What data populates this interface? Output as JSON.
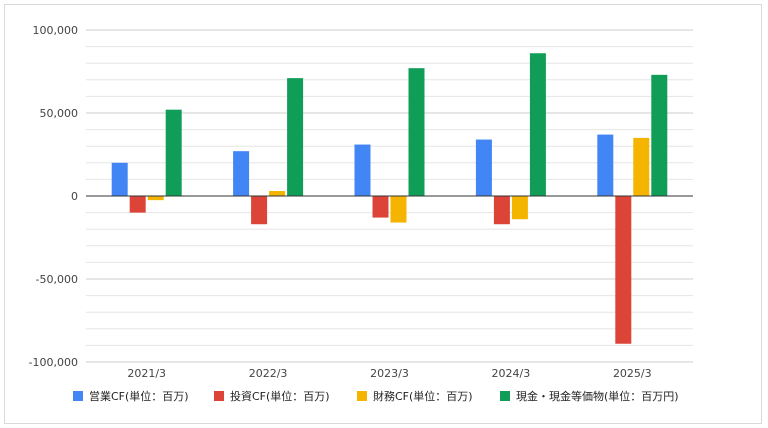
{
  "chart_data": {
    "type": "bar",
    "categories": [
      "2021/3",
      "2022/3",
      "2023/3",
      "2024/3",
      "2025/3"
    ],
    "series": [
      {
        "name": "営業CF(単位：百万)",
        "color": "#4285f4",
        "values": [
          20000,
          27000,
          31000,
          34000,
          37000
        ]
      },
      {
        "name": "投資CF(単位：百万)",
        "color": "#db4437",
        "values": [
          -10000,
          -17000,
          -13000,
          -17000,
          -89000
        ]
      },
      {
        "name": "財務CF(単位：百万)",
        "color": "#f4b400",
        "values": [
          -2500,
          3000,
          -16000,
          -14000,
          35000
        ]
      },
      {
        "name": "現金・現金等価物(単位：百万円)",
        "color": "#0f9d58",
        "values": [
          52000,
          71000,
          77000,
          86000,
          73000
        ]
      }
    ],
    "y_ticks": [
      100000,
      50000,
      0,
      -50000,
      -100000
    ],
    "y_tick_labels": [
      "100,000",
      "50,000",
      "0",
      "-50,000",
      "-100,000"
    ],
    "ylim": [
      -100000,
      100000
    ],
    "grid": true,
    "legend_position": "bottom"
  }
}
